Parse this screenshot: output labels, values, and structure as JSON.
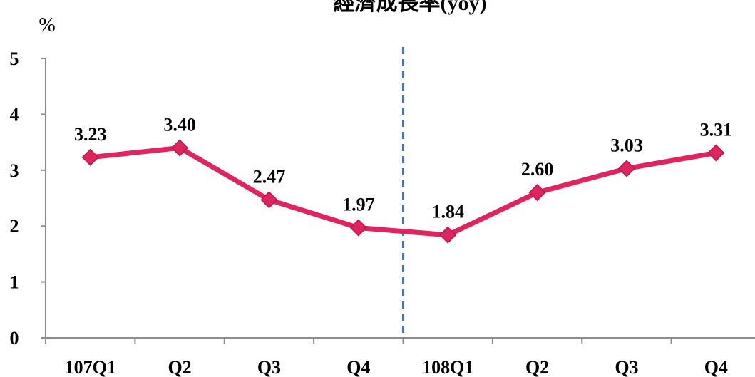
{
  "chart_data": {
    "type": "line",
    "title": "經濟成長率(yoy)",
    "ylabel": "%",
    "xlabel": "",
    "categories": [
      "107Q1",
      "Q2",
      "Q3",
      "Q4",
      "108Q1",
      "Q2",
      "Q3",
      "Q4"
    ],
    "series": [
      {
        "values": [
          3.23,
          3.4,
          2.47,
          1.97,
          1.84,
          2.6,
          3.03,
          3.31
        ],
        "color": "#e0245e",
        "marker": "diamond"
      }
    ],
    "data_labels": [
      "3.23",
      "3.40",
      "2.47",
      "1.97",
      "1.84",
      "2.60",
      "3.03",
      "3.31"
    ],
    "ylim": [
      0,
      5
    ],
    "yticks": [
      0,
      1,
      2,
      3,
      4,
      5
    ],
    "grid": false,
    "legend": "none",
    "divider": {
      "between_categories": [
        "Q4",
        "108Q1"
      ],
      "style": "dashed",
      "color": "#3f77b8"
    }
  }
}
